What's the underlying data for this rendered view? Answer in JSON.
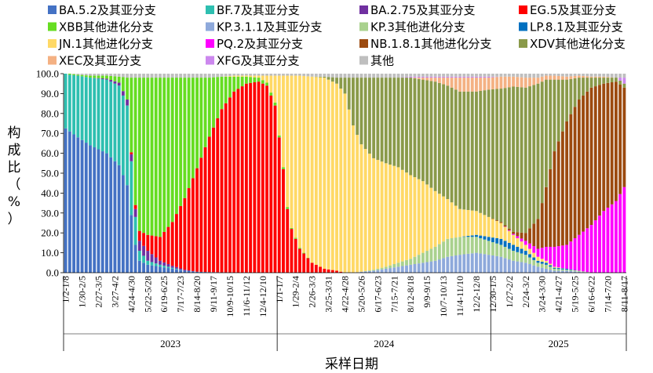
{
  "chart_data": {
    "type": "bar",
    "stacked": true,
    "title": "",
    "xlabel": "采样日期",
    "ylabel": "构成比（%）",
    "ylim": [
      0,
      100
    ],
    "yticks": [
      "0.0",
      "10.0",
      "20.0",
      "30.0",
      "40.0",
      "50.0",
      "60.0",
      "70.0",
      "80.0",
      "90.0",
      "100.0"
    ],
    "legend_position": "top",
    "series": [
      {
        "name": "BA.5.2及其亚分支",
        "color": "#4472C4"
      },
      {
        "name": "BF.7及其亚分支",
        "color": "#2EBFB0"
      },
      {
        "name": "BA.2.75及其亚分支",
        "color": "#7030A0"
      },
      {
        "name": "EG.5及其亚分支",
        "color": "#FF0000"
      },
      {
        "name": "XBB其他进化分支",
        "color": "#66DD22"
      },
      {
        "name": "KP.3.1.1及其亚分支",
        "color": "#8EA9DB"
      },
      {
        "name": "KP.3其他进化分支",
        "color": "#A9D18E"
      },
      {
        "name": "LP.8.1及其亚分支",
        "color": "#0070C0"
      },
      {
        "name": "JN.1其他进化分支",
        "color": "#FFD966"
      },
      {
        "name": "PQ.2及其亚分支",
        "color": "#FF00FF"
      },
      {
        "name": "NB.1.8.1其他进化分支",
        "color": "#9C4A0F"
      },
      {
        "name": "XDV其他进化分支",
        "color": "#8A9A4A"
      },
      {
        "name": "XEC及其亚分支",
        "color": "#F4B183"
      },
      {
        "name": "XFG及其亚分支",
        "color": "#CC88EE"
      },
      {
        "name": "其他",
        "color": "#BFBFBF"
      }
    ],
    "x_tick_labels": [
      "1/2-1/8",
      "1/30-2/5",
      "2/27-3/5",
      "3/27-4/2",
      "4/24-4/30",
      "5/22-5/28",
      "6/19-6/25",
      "7/17-7/23",
      "8/14-8/20",
      "9/11-9/17",
      "10/9-10/15",
      "11/6-11/12",
      "12/4-12/10",
      "1/1-1/7",
      "1/29-2/4",
      "2/26-3/3",
      "3/25-3/31",
      "4/22-4/28",
      "5/20-5/26",
      "6/17-6/23",
      "7/15-7/21",
      "8/12-8/18",
      "9/9-9/15",
      "10/7-10/13",
      "11/4-11/10",
      "12/2-12/8",
      "12/30-1/5",
      "1/27-2/2",
      "2/24-3/2",
      "3/24-3/30",
      "4/21-4/27",
      "5/19-5/25",
      "6/16-6/22",
      "7/14-7/20",
      "8/11-8/17"
    ],
    "years": [
      {
        "label": "2023",
        "weeks": 52
      },
      {
        "label": "2024",
        "weeks": 52
      },
      {
        "label": "2025",
        "weeks": 33
      }
    ],
    "stack_rows": [
      {
        "at": 0,
        "v": [
          72.5,
          27.5,
          0,
          0,
          0,
          0,
          0,
          0,
          0,
          0,
          0,
          0,
          0,
          0,
          0
        ]
      },
      {
        "at": 1,
        "v": [
          71,
          28.5,
          0,
          0,
          0.5,
          0,
          0,
          0,
          0,
          0,
          0,
          0,
          0,
          0,
          0
        ]
      },
      {
        "at": 3,
        "v": [
          68,
          31,
          0,
          0,
          0.5,
          0,
          0,
          0,
          0,
          0,
          0,
          0,
          0,
          0,
          0.5
        ]
      },
      {
        "at": 6,
        "v": [
          64,
          34,
          0,
          0,
          1,
          0,
          0,
          0,
          0,
          0,
          0,
          0,
          0,
          0,
          1
        ]
      },
      {
        "at": 10,
        "v": [
          60,
          37,
          0.5,
          0,
          1.5,
          0,
          0,
          0,
          0,
          0,
          0,
          0,
          0,
          0,
          1
        ]
      },
      {
        "at": 13,
        "v": [
          54,
          40,
          1.5,
          0,
          3,
          0,
          0,
          0,
          0,
          0,
          0,
          0,
          0,
          0,
          1.5
        ]
      },
      {
        "at": 15,
        "v": [
          44,
          40,
          3,
          0,
          11,
          0,
          0,
          0,
          0,
          0,
          0,
          0,
          0,
          0,
          2
        ]
      },
      {
        "at": 17,
        "v": [
          14,
          14,
          4,
          2,
          64,
          0,
          0,
          0,
          0,
          0,
          0,
          0,
          0,
          0,
          2
        ]
      },
      {
        "at": 18,
        "v": [
          6,
          5,
          5,
          5,
          77,
          0,
          0,
          0,
          0,
          0,
          0,
          0,
          0,
          0,
          2
        ]
      },
      {
        "at": 20,
        "v": [
          4,
          2,
          5,
          8,
          79,
          0,
          0,
          0,
          0,
          0,
          0,
          0,
          0,
          0,
          2
        ]
      },
      {
        "at": 23,
        "v": [
          3,
          1,
          2,
          12,
          80,
          0,
          0,
          0,
          0,
          0,
          0,
          0,
          0,
          0,
          2
        ]
      },
      {
        "at": 26,
        "v": [
          2,
          0.5,
          1,
          22,
          72.5,
          0,
          0,
          0,
          0,
          0,
          0,
          0,
          0,
          0,
          2
        ]
      },
      {
        "at": 29,
        "v": [
          1,
          0,
          0.5,
          36,
          60.5,
          0,
          0,
          0,
          0,
          0,
          0,
          0,
          0,
          0,
          2
        ]
      },
      {
        "at": 32,
        "v": [
          0.5,
          0,
          0,
          52,
          45.5,
          0,
          0,
          0,
          0,
          0,
          0,
          0,
          0,
          0,
          2
        ]
      },
      {
        "at": 35,
        "v": [
          0.3,
          0,
          0,
          68,
          29.7,
          0,
          0,
          0,
          0,
          0,
          0,
          0,
          0,
          0,
          2
        ]
      },
      {
        "at": 38,
        "v": [
          0.2,
          0,
          0,
          82,
          16.3,
          0,
          0,
          0,
          0,
          0,
          0,
          0,
          0,
          0,
          1.5
        ]
      },
      {
        "at": 41,
        "v": [
          0,
          0,
          0,
          91,
          7.5,
          0,
          0,
          0,
          0.5,
          0,
          0,
          0,
          0,
          0,
          1
        ]
      },
      {
        "at": 44,
        "v": [
          0,
          0,
          0,
          95,
          3.5,
          0,
          0,
          0,
          0.5,
          0,
          0,
          0,
          0,
          0,
          1
        ]
      },
      {
        "at": 47,
        "v": [
          0,
          0,
          0,
          96,
          2,
          0,
          0,
          0,
          1,
          0,
          0,
          0,
          0,
          0,
          1
        ]
      },
      {
        "at": 49,
        "v": [
          0,
          0,
          0,
          94,
          1.5,
          0,
          0,
          0,
          3.5,
          0,
          0,
          0,
          0,
          0,
          1
        ]
      },
      {
        "at": 51,
        "v": [
          0,
          0,
          0,
          84,
          1.5,
          0,
          0,
          0,
          13.5,
          0,
          0,
          0,
          0,
          0,
          1
        ]
      },
      {
        "at": 52,
        "v": [
          0,
          0,
          0,
          68,
          1,
          0,
          0,
          0,
          30,
          0,
          0,
          0,
          0,
          0,
          1
        ]
      },
      {
        "at": 53,
        "v": [
          0,
          0,
          0,
          52,
          1,
          0,
          0,
          0,
          46,
          0,
          0,
          0,
          0,
          0,
          1
        ]
      },
      {
        "at": 54,
        "v": [
          0,
          0,
          0,
          32,
          1,
          0,
          0,
          0,
          66,
          0,
          0,
          0,
          0,
          0,
          1
        ]
      },
      {
        "at": 55,
        "v": [
          0,
          0,
          0,
          22,
          0.5,
          0,
          0,
          0,
          76.5,
          0,
          0,
          0,
          0,
          0,
          1
        ]
      },
      {
        "at": 57,
        "v": [
          0,
          0,
          0,
          12,
          0.5,
          0,
          0,
          0,
          86.5,
          0,
          0,
          0,
          0,
          0,
          1
        ]
      },
      {
        "at": 60,
        "v": [
          0,
          0,
          0,
          5,
          0,
          0,
          0,
          0,
          93.5,
          0,
          0,
          0,
          0,
          0,
          1.5
        ]
      },
      {
        "at": 63,
        "v": [
          0,
          0,
          0,
          2,
          0,
          0,
          0,
          0,
          96,
          0,
          0,
          0.5,
          0,
          0,
          1.5
        ]
      },
      {
        "at": 66,
        "v": [
          0,
          0,
          0,
          1,
          0,
          0,
          0,
          0,
          94,
          0,
          0,
          3,
          0,
          0,
          2
        ]
      },
      {
        "at": 68,
        "v": [
          0,
          0,
          0,
          0,
          0,
          0,
          0,
          0,
          90,
          0,
          0,
          8,
          0,
          0,
          2
        ]
      },
      {
        "at": 70,
        "v": [
          0,
          0,
          0,
          0,
          0,
          0,
          0,
          0,
          74,
          0,
          0,
          24,
          0,
          0,
          2
        ]
      },
      {
        "at": 72,
        "v": [
          0,
          0,
          0,
          0,
          0,
          0.5,
          0,
          0,
          64,
          0,
          0,
          33.5,
          0,
          0,
          2
        ]
      },
      {
        "at": 75,
        "v": [
          0,
          0,
          0,
          0,
          0,
          1,
          0.5,
          0,
          56,
          0,
          0,
          40.5,
          0,
          0,
          2
        ]
      },
      {
        "at": 78,
        "v": [
          0,
          0,
          0,
          0,
          0,
          2,
          1,
          0,
          52,
          0,
          0,
          43,
          0,
          0,
          2
        ]
      },
      {
        "at": 81,
        "v": [
          0,
          0,
          0,
          0,
          0,
          3,
          2,
          0,
          48,
          0,
          0,
          45,
          0,
          0,
          2
        ]
      },
      {
        "at": 84,
        "v": [
          0,
          0,
          0,
          0,
          0,
          4,
          3,
          0,
          42,
          0,
          0,
          49,
          0,
          0.5,
          1.5
        ]
      },
      {
        "at": 87,
        "v": [
          0,
          0,
          0,
          0,
          0,
          5,
          5,
          0,
          36,
          0,
          0,
          51,
          1,
          0.5,
          1.5
        ]
      },
      {
        "at": 90,
        "v": [
          0,
          0,
          0,
          0,
          0,
          6,
          7,
          0,
          28,
          0,
          0,
          55,
          2,
          0.5,
          1.5
        ]
      },
      {
        "at": 93,
        "v": [
          0,
          0,
          0,
          0,
          0,
          8,
          9,
          0,
          20,
          0,
          0,
          57,
          4,
          0.5,
          1.5
        ]
      },
      {
        "at": 96,
        "v": [
          0,
          0,
          0,
          0,
          0,
          9,
          9,
          0,
          14,
          0,
          0,
          59,
          7,
          0.5,
          1.5
        ]
      },
      {
        "at": 100,
        "v": [
          0,
          0,
          0,
          0,
          0,
          10,
          8,
          1,
          12,
          0,
          0,
          60,
          7,
          0.5,
          1.5
        ]
      },
      {
        "at": 103,
        "v": [
          0,
          0,
          0,
          0,
          0,
          9,
          7,
          2,
          10,
          0,
          0,
          64,
          6,
          0.5,
          1.5
        ]
      },
      {
        "at": 106,
        "v": [
          0,
          0,
          0,
          0,
          0,
          8,
          6,
          3,
          8,
          0,
          0.5,
          67,
          6,
          0,
          1.5
        ]
      },
      {
        "at": 109,
        "v": [
          0,
          0,
          0,
          0,
          0,
          6,
          5,
          3,
          5,
          0.5,
          1,
          73,
          5,
          0,
          1.5
        ]
      },
      {
        "at": 112,
        "v": [
          0,
          0,
          0,
          0,
          0,
          5,
          4,
          2,
          3,
          2,
          4,
          73,
          5,
          0,
          2
        ]
      },
      {
        "at": 115,
        "v": [
          0,
          0,
          0,
          0,
          0,
          3,
          2,
          1,
          2,
          4,
          15,
          68,
          3,
          0,
          2
        ]
      },
      {
        "at": 117,
        "v": [
          0,
          0,
          0,
          0,
          0,
          2,
          2,
          1,
          1,
          7,
          30,
          54,
          2,
          0,
          1
        ]
      },
      {
        "at": 119,
        "v": [
          0,
          0,
          0,
          0,
          0,
          1,
          1,
          0.5,
          0.5,
          10,
          48,
          36,
          2,
          0,
          1
        ]
      },
      {
        "at": 122,
        "v": [
          0,
          0,
          0,
          0,
          0,
          1,
          0.5,
          0.5,
          0,
          12,
          62,
          21,
          1.5,
          0,
          1.5
        ]
      },
      {
        "at": 125,
        "v": [
          0,
          0,
          0,
          0,
          0,
          0.5,
          0.5,
          0,
          0,
          18,
          68,
          11,
          1,
          0,
          1
        ]
      },
      {
        "at": 128,
        "v": [
          0,
          0,
          0,
          0,
          0,
          0,
          0,
          0,
          0,
          24,
          69,
          5,
          0.5,
          0,
          1.5
        ]
      },
      {
        "at": 131,
        "v": [
          0,
          0,
          0,
          0,
          0,
          0,
          0,
          0,
          0,
          31,
          64,
          3,
          0.5,
          0,
          1.5
        ]
      },
      {
        "at": 134,
        "v": [
          0,
          0,
          0,
          0,
          0,
          0,
          0,
          0,
          0,
          36,
          60,
          2,
          0,
          0,
          2
        ]
      },
      {
        "at": 136,
        "v": [
          0,
          0,
          0,
          0,
          0,
          0,
          0,
          0,
          0,
          43,
          50,
          2,
          0,
          3,
          2
        ]
      }
    ]
  }
}
